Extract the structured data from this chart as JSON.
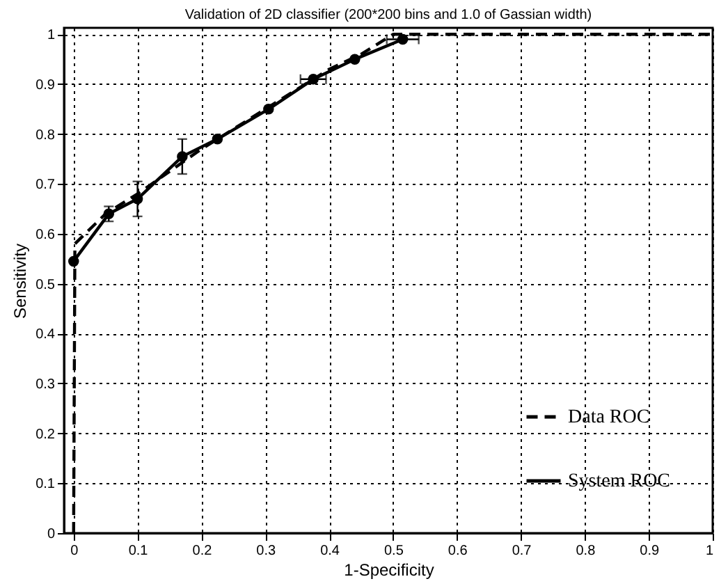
{
  "chart_data": {
    "type": "line",
    "title": "Validation of 2D classifier (200*200 bins and 1.0 of Gassian width)",
    "xlabel": "1-Specificity",
    "ylabel": "Sensitivity",
    "xlim": [
      -0.015,
      1
    ],
    "ylim": [
      0,
      1.013
    ],
    "xticks": [
      0,
      0.1,
      0.2,
      0.3,
      0.4,
      0.5,
      0.6,
      0.7,
      0.8,
      0.9,
      1
    ],
    "yticks": [
      0,
      0.1,
      0.2,
      0.3,
      0.4,
      0.5,
      0.6,
      0.7,
      0.8,
      0.9,
      1
    ],
    "grid": true,
    "legend": "bottom right",
    "series": [
      {
        "name": "Data ROC",
        "color": "#000000",
        "line_style": "dashed",
        "marker": "none",
        "x": [
          0,
          0.002,
          0.05,
          0.1,
          0.2,
          0.3,
          0.4,
          0.45,
          0.5,
          1
        ],
        "values": [
          0,
          0.58,
          0.64,
          0.68,
          0.77,
          0.85,
          0.93,
          0.96,
          1.0,
          1.0
        ]
      },
      {
        "name": "System ROC",
        "color": "#000000",
        "line_style": "solid",
        "marker": "circle",
        "x": [
          0,
          0.055,
          0.1,
          0.17,
          0.225,
          0.305,
          0.375,
          0.44,
          0.515
        ],
        "values": [
          0.545,
          0.64,
          0.67,
          0.755,
          0.79,
          0.85,
          0.91,
          0.95,
          0.99
        ],
        "errors": [
          null,
          0.015,
          0.035,
          0.035,
          null,
          null,
          null,
          null,
          null
        ],
        "xerrors": [
          null,
          null,
          null,
          null,
          null,
          null,
          0.02,
          null,
          0.025
        ]
      }
    ]
  }
}
